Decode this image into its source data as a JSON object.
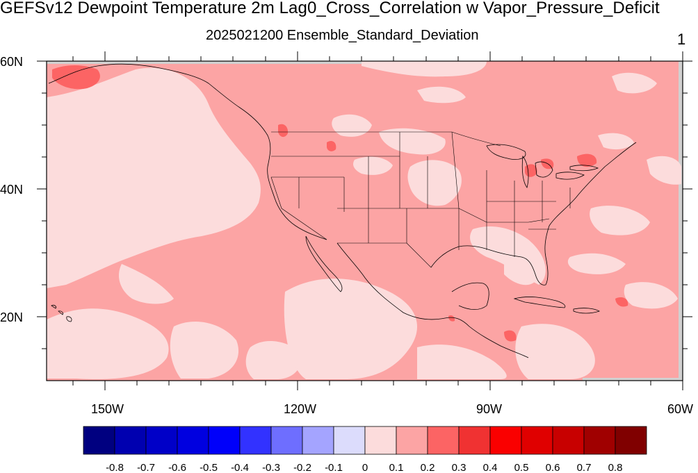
{
  "title": "GEFSv12 Dewpoint Temperature 2m Lag0_Cross_Correlation w Vapor_Pressure_Deficit",
  "subtitle": "2025021200 Ensemble_Standard_Deviation",
  "corner_label": "1",
  "map": {
    "region": "North America / Eastern Pacific",
    "lon_range": [
      -160,
      -60
    ],
    "lat_range": [
      10,
      60
    ],
    "lon_ticks": [
      "150W",
      "120W",
      "90W",
      "60W"
    ],
    "lat_ticks": [
      "60N",
      "40N",
      "20N"
    ],
    "missing_color": "#d0d0d0",
    "field_colors": {
      "0-0.1": "#fcdcdc",
      "0.1-0.2": "#fca4a4",
      "0.2-0.3": "#fc6464",
      "0.3-0.4": "#f03232"
    }
  },
  "colorbar": {
    "labels": [
      "-0.8",
      "-0.7",
      "-0.6",
      "-0.5",
      "-0.4",
      "-0.3",
      "-0.2",
      "-0.1",
      "0",
      "0.1",
      "0.2",
      "0.3",
      "0.4",
      "0.5",
      "0.6",
      "0.7",
      "0.8"
    ],
    "colors": [
      "#000080",
      "#0000b0",
      "#0000c8",
      "#0000e0",
      "#0000fa",
      "#3232ff",
      "#6e6eff",
      "#a4a4ff",
      "#dcdcfc",
      "#fcdcdc",
      "#fca4a4",
      "#fc6464",
      "#f03232",
      "#fa0000",
      "#e00000",
      "#c80000",
      "#a00000",
      "#800000"
    ]
  }
}
